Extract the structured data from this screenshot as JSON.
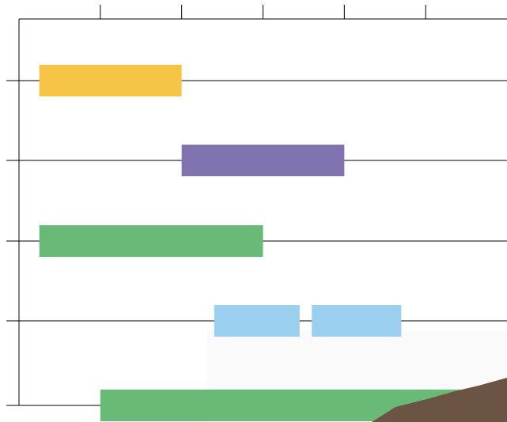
{
  "chart_data": {
    "type": "range-bar",
    "categories": [
      null,
      null,
      null,
      null,
      null
    ],
    "rows": [
      {
        "color": "#f6c546",
        "ranges": [
          [
            0.25,
            2
          ]
        ]
      },
      {
        "color": "#8073b0",
        "ranges": [
          [
            2,
            4
          ]
        ]
      },
      {
        "color": "#69b977",
        "ranges": [
          [
            0.25,
            3
          ]
        ]
      },
      {
        "color": "#9acfef",
        "ranges": [
          [
            2.4,
            3.45
          ],
          [
            3.6,
            4.7
          ]
        ]
      },
      {
        "color": "#69b977",
        "ranges": [
          [
            1,
            5.75
          ]
        ]
      }
    ],
    "xlim": [
      0,
      6
    ],
    "xticks": [
      1,
      2,
      3,
      4,
      5
    ],
    "grid": true
  }
}
